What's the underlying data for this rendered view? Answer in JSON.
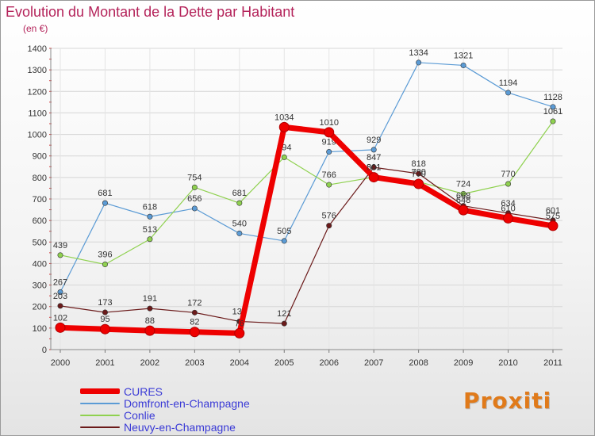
{
  "header": {
    "title": "Evolution du Montant de la Dette par Habitant",
    "unit": "(en €)"
  },
  "brand": {
    "logo": "Proxiti"
  },
  "chart_data": {
    "type": "line",
    "title": "Evolution du Montant de la Dette par Habitant",
    "ylabel": "(en €)",
    "xlabel": "",
    "x": [
      "2000",
      "2001",
      "2002",
      "2003",
      "2004",
      "2005",
      "2006",
      "2007",
      "2008",
      "2009",
      "2010",
      "2011"
    ],
    "ylim": [
      0,
      1400
    ],
    "yticks": [
      0,
      100,
      200,
      300,
      400,
      500,
      600,
      700,
      800,
      900,
      1000,
      1100,
      1200,
      1300,
      1400
    ],
    "grid": true,
    "legend_position": "bottom-left",
    "series": [
      {
        "name": "Domfront-en-Champagne",
        "color": "#5b9bd5",
        "values": [
          267,
          681,
          618,
          656,
          540,
          505,
          919,
          929,
          1334,
          1321,
          1194,
          1128
        ]
      },
      {
        "name": "Conlie",
        "color": "#8fd14f",
        "values": [
          439,
          396,
          513,
          754,
          681,
          894,
          766,
          801,
          780,
          724,
          770,
          1061
        ]
      },
      {
        "name": "Neuvy-en-Champagne",
        "color": "#6b1a1a",
        "values": [
          203,
          173,
          191,
          172,
          131,
          121,
          576,
          847,
          818,
          668,
          634,
          601
        ]
      },
      {
        "name": "CURES",
        "color": "#ee0000",
        "values": [
          102,
          95,
          88,
          82,
          76,
          1034,
          1010,
          801,
          770,
          648,
          610,
          575
        ]
      }
    ]
  }
}
